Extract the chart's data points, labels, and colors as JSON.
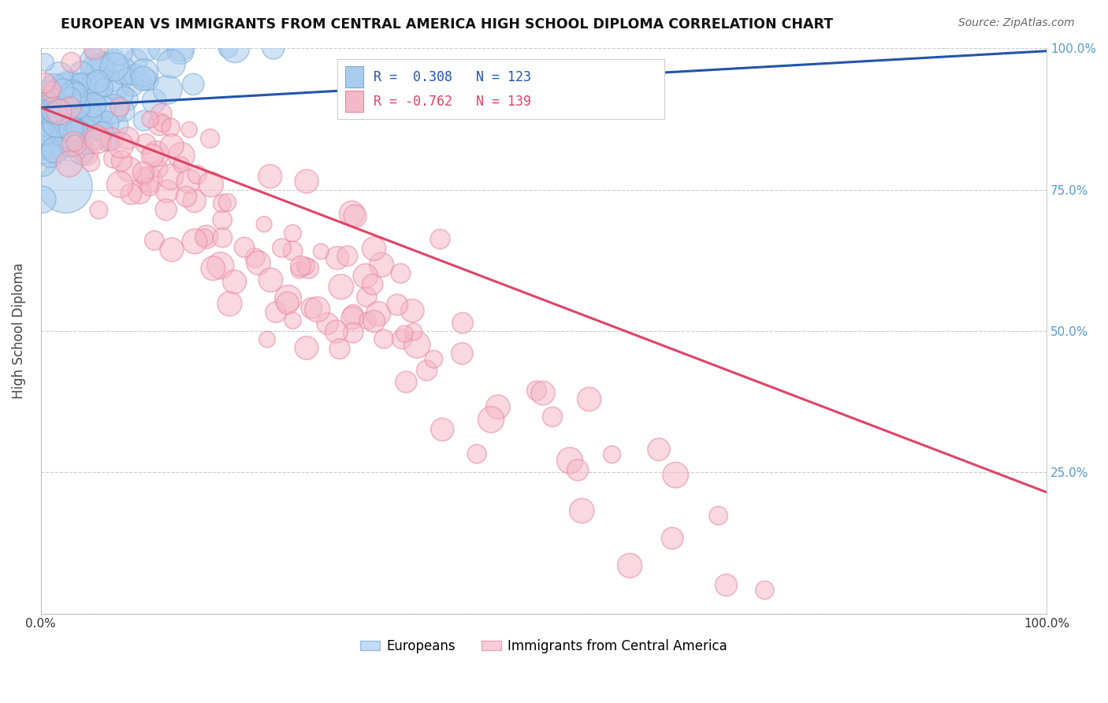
{
  "title": "EUROPEAN VS IMMIGRANTS FROM CENTRAL AMERICA HIGH SCHOOL DIPLOMA CORRELATION CHART",
  "source": "Source: ZipAtlas.com",
  "ylabel": "High School Diploma",
  "xlim": [
    0.0,
    1.0
  ],
  "ylim": [
    0.0,
    1.0
  ],
  "blue_R": 0.308,
  "blue_N": 123,
  "pink_R": -0.762,
  "pink_N": 139,
  "blue_color": "#aaccee",
  "blue_edge_color": "#7aadd4",
  "pink_color": "#f5b8c8",
  "pink_edge_color": "#e888a0",
  "blue_line_color": "#2255aa",
  "pink_line_color": "#dd4466",
  "legend_blue_label": "Europeans",
  "legend_pink_label": "Immigrants from Central America",
  "background_color": "#ffffff",
  "grid_color": "#cccccc",
  "title_color": "#111111",
  "source_color": "#666666",
  "yaxis_label_color": "#5599cc",
  "blue_line_start_y": 0.895,
  "blue_line_end_y": 0.995,
  "pink_line_start_y": 0.895,
  "pink_line_end_y": 0.215
}
